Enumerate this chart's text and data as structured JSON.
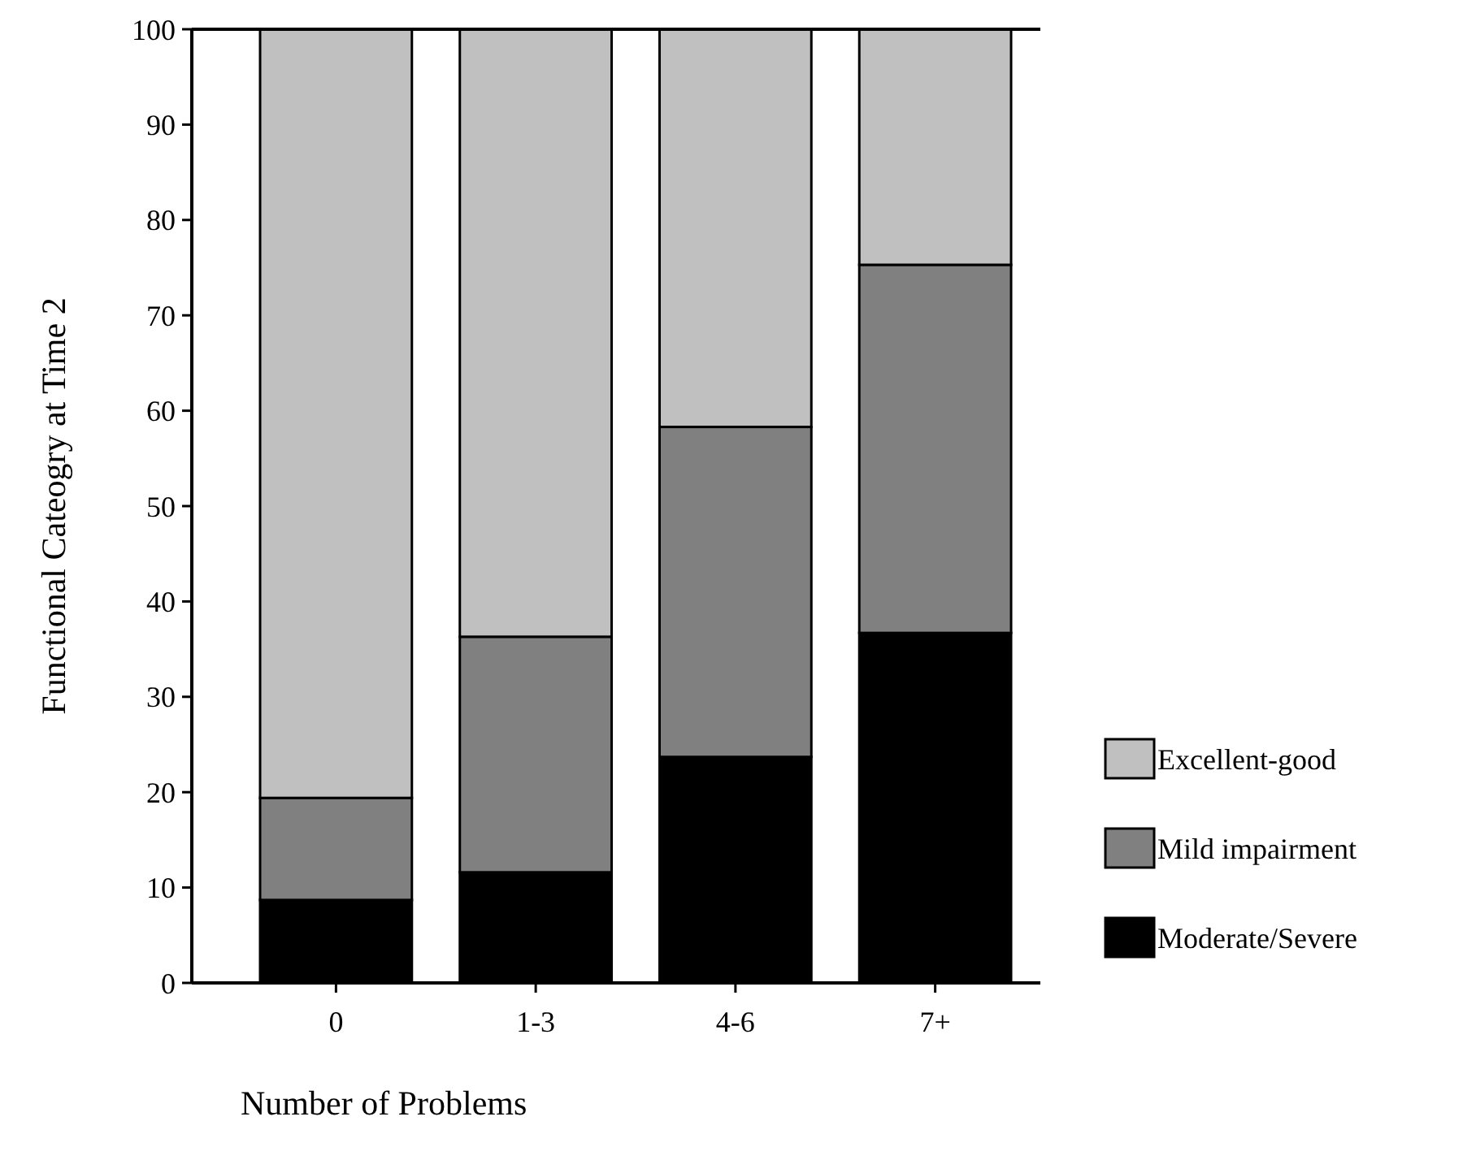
{
  "chart_data": {
    "type": "bar",
    "stacked": true,
    "xlabel": "Number of Problems",
    "ylabel": "Functional Cateogry at Time 2",
    "categories": [
      "0",
      "1-3",
      "4-6",
      "7+"
    ],
    "series": [
      {
        "name": "Moderate/Severe",
        "color": "#000000",
        "values": [
          8.7,
          11.6,
          23.7,
          36.7
        ]
      },
      {
        "name": "Mild impairment",
        "color": "#808080",
        "values": [
          10.7,
          24.7,
          34.6,
          38.6
        ]
      },
      {
        "name": "Excellent-good",
        "color": "#c0c0c0",
        "values": [
          80.6,
          63.7,
          41.7,
          24.7
        ]
      }
    ],
    "ylim": [
      0,
      100
    ],
    "yticks": [
      0,
      10,
      20,
      30,
      40,
      50,
      60,
      70,
      80,
      90,
      100
    ],
    "legend": "right",
    "grid": false
  }
}
